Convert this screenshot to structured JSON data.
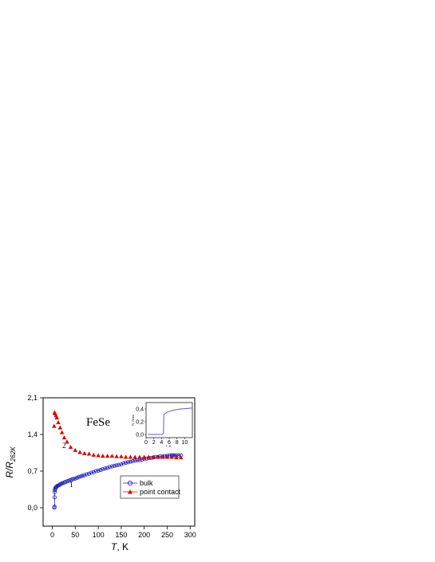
{
  "chart_data": [
    {
      "type": "scatter",
      "annotation": "FeSe",
      "xlabel_italic": "T",
      "xlabel_rest": ", K",
      "ylabel_base": "R/R",
      "ylabel_sub": "262K",
      "xlim": [
        -20,
        310
      ],
      "ylim": [
        -0.35,
        2.1
      ],
      "x_ticks": [
        "0",
        "50",
        "100",
        "150",
        "200",
        "250",
        "300"
      ],
      "y_ticks": [
        "0,0",
        "0,7",
        "1,4",
        "2,1"
      ],
      "curve_labels": [
        "1",
        "2"
      ],
      "legend_position": "bottom-right",
      "series": [
        {
          "name": "bulk",
          "marker": "open-circle",
          "color": "#1e1ebe",
          "x": [
            4.5,
            4.8,
            5,
            5.2,
            5.5,
            6,
            7,
            8,
            9,
            10,
            12,
            14,
            16,
            18,
            20,
            22,
            25,
            28,
            31,
            34,
            37,
            40,
            43,
            46,
            50,
            54,
            58,
            62,
            66,
            70,
            75,
            80,
            85,
            90,
            95,
            100,
            105,
            110,
            115,
            120,
            125,
            130,
            135,
            140,
            145,
            150,
            155,
            160,
            165,
            170,
            175,
            180,
            185,
            190,
            195,
            200,
            205,
            210,
            215,
            220,
            225,
            230,
            235,
            240,
            245,
            250,
            255,
            260,
            262,
            265,
            270,
            275,
            280
          ],
          "y": [
            0.0,
            0.02,
            0.2,
            0.3,
            0.34,
            0.36,
            0.38,
            0.39,
            0.4,
            0.41,
            0.42,
            0.43,
            0.44,
            0.45,
            0.46,
            0.47,
            0.48,
            0.49,
            0.5,
            0.51,
            0.52,
            0.53,
            0.54,
            0.55,
            0.56,
            0.57,
            0.59,
            0.6,
            0.61,
            0.62,
            0.64,
            0.65,
            0.67,
            0.68,
            0.7,
            0.71,
            0.72,
            0.74,
            0.75,
            0.76,
            0.78,
            0.79,
            0.8,
            0.81,
            0.82,
            0.83,
            0.85,
            0.86,
            0.87,
            0.88,
            0.89,
            0.9,
            0.91,
            0.91,
            0.92,
            0.93,
            0.94,
            0.95,
            0.95,
            0.96,
            0.97,
            0.97,
            0.98,
            0.98,
            0.99,
            0.99,
            1.0,
            1.0,
            1.0,
            1.0,
            1.0,
            1.0,
            1.0
          ]
        },
        {
          "name": "point contact",
          "marker": "filled-triangle",
          "color": "#e00000",
          "x": [
            4,
            5,
            6,
            8,
            10,
            13,
            17,
            21,
            26,
            32,
            40,
            50,
            60,
            70,
            80,
            90,
            100,
            110,
            120,
            130,
            140,
            150,
            160,
            170,
            180,
            190,
            200,
            210,
            220,
            230,
            240,
            250,
            260,
            270,
            280
          ],
          "y": [
            1.56,
            1.82,
            1.8,
            1.76,
            1.72,
            1.63,
            1.53,
            1.44,
            1.34,
            1.26,
            1.16,
            1.1,
            1.06,
            1.04,
            1.03,
            1.01,
            1.0,
            0.99,
            0.99,
            0.99,
            0.98,
            0.98,
            0.97,
            0.97,
            0.97,
            0.97,
            0.97,
            0.97,
            0.97,
            0.97,
            0.97,
            0.97,
            0.97,
            0.96,
            0.96
          ]
        }
      ]
    },
    {
      "type": "line",
      "role": "inset",
      "xlabel": "T, K",
      "ylabel": "R, Ohm",
      "xlim": [
        0,
        12
      ],
      "ylim": [
        -0.05,
        0.5
      ],
      "x_ticks": [
        "0",
        "2",
        "4",
        "6",
        "8",
        "10"
      ],
      "y_ticks": [
        "0,0",
        "0,2",
        "0,4"
      ],
      "series": [
        {
          "color": "#5a5ae6",
          "x": [
            0.5,
            1,
            2,
            3,
            3.5,
            4,
            4.3,
            4.5,
            4.6,
            4.8,
            5,
            5.5,
            6,
            7,
            8,
            9,
            10,
            11,
            12
          ],
          "y": [
            0,
            0,
            0,
            0,
            0,
            0,
            0.005,
            0.02,
            0.3,
            0.32,
            0.33,
            0.35,
            0.36,
            0.38,
            0.39,
            0.4,
            0.405,
            0.41,
            0.415
          ]
        }
      ]
    }
  ]
}
